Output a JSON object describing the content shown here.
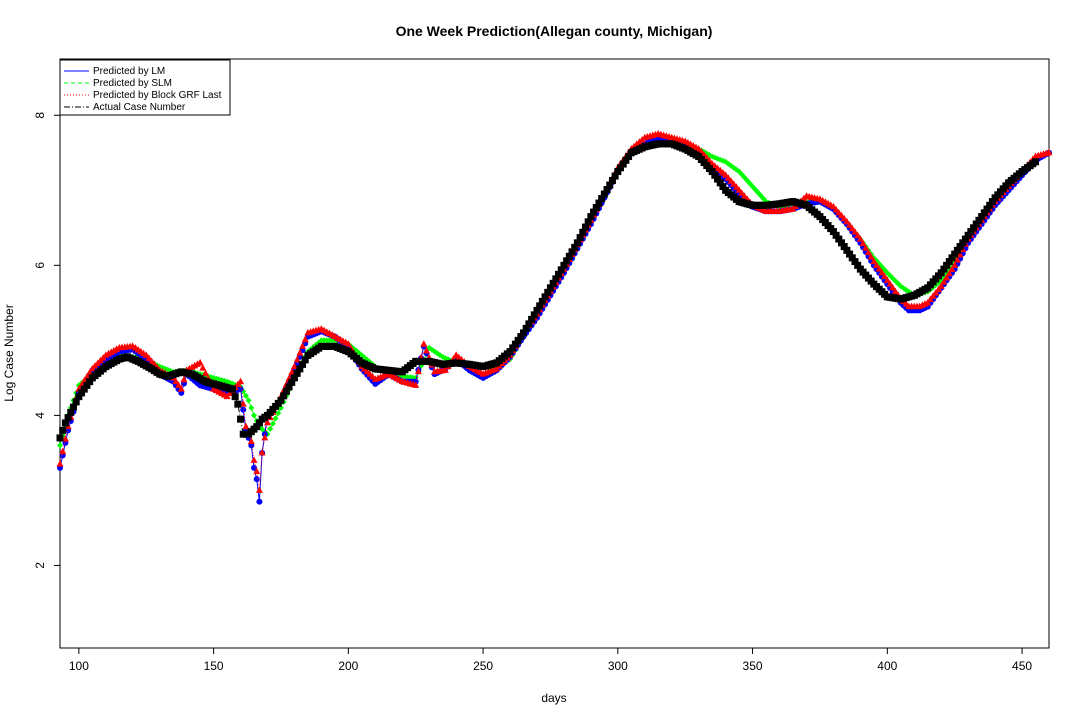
{
  "chart_data": {
    "type": "line",
    "title": "One Week Prediction(Allegan county, Michigan)",
    "xlabel": "days",
    "ylabel": "Log Case Number",
    "xlim": [
      93,
      460
    ],
    "ylim": [
      0.9,
      8.75
    ],
    "x_ticks": [
      100,
      150,
      200,
      250,
      300,
      350,
      400,
      450
    ],
    "y_ticks": [
      2,
      4,
      6,
      8
    ],
    "grid": false,
    "legend_position": "top-left",
    "series": [
      {
        "name": "Actual Case Number",
        "color": "#000000",
        "marker": "square",
        "line_style": "dash-dot",
        "x": [
          93,
          95,
          100,
          105,
          110,
          115,
          118,
          122,
          127,
          130,
          133,
          138,
          142,
          147,
          152,
          157,
          159,
          161,
          163,
          166,
          168,
          170,
          175,
          180,
          185,
          190,
          195,
          200,
          205,
          210,
          215,
          220,
          225,
          230,
          235,
          240,
          245,
          250,
          255,
          260,
          265,
          270,
          275,
          280,
          285,
          290,
          295,
          300,
          305,
          310,
          315,
          320,
          325,
          330,
          335,
          340,
          345,
          350,
          355,
          360,
          365,
          370,
          375,
          380,
          385,
          390,
          395,
          400,
          405,
          410,
          415,
          420,
          425,
          430,
          435,
          440,
          445,
          450,
          455
        ],
        "values": [
          3.7,
          3.9,
          4.25,
          4.5,
          4.65,
          4.75,
          4.78,
          4.72,
          4.62,
          4.55,
          4.52,
          4.58,
          4.55,
          4.45,
          4.4,
          4.35,
          4.15,
          3.75,
          3.75,
          3.85,
          3.95,
          4.0,
          4.2,
          4.5,
          4.8,
          4.92,
          4.92,
          4.85,
          4.7,
          4.62,
          4.6,
          4.58,
          4.72,
          4.72,
          4.68,
          4.7,
          4.68,
          4.65,
          4.7,
          4.85,
          5.1,
          5.4,
          5.7,
          6.0,
          6.3,
          6.65,
          6.95,
          7.25,
          7.5,
          7.58,
          7.62,
          7.62,
          7.55,
          7.45,
          7.25,
          7.0,
          6.85,
          6.8,
          6.8,
          6.82,
          6.85,
          6.8,
          6.65,
          6.45,
          6.2,
          5.95,
          5.75,
          5.58,
          5.55,
          5.6,
          5.7,
          5.9,
          6.15,
          6.4,
          6.65,
          6.9,
          7.1,
          7.25,
          7.38
        ]
      },
      {
        "name": "Predicted by SLM",
        "color": "#00ff00",
        "marker": "diamond",
        "line_style": "dashed",
        "x": [
          93,
          96,
          100,
          105,
          110,
          115,
          120,
          125,
          130,
          135,
          140,
          145,
          150,
          155,
          160,
          163,
          165,
          167,
          170,
          175,
          180,
          185,
          190,
          195,
          200,
          205,
          210,
          215,
          220,
          225,
          230,
          235,
          240,
          245,
          250,
          255,
          260,
          265,
          270,
          280,
          290,
          300,
          305,
          310,
          315,
          320,
          325,
          330,
          335,
          340,
          345,
          350,
          355,
          360,
          365,
          370,
          375,
          380,
          385,
          390,
          395,
          400,
          405,
          410,
          415,
          420,
          425,
          430,
          440,
          450,
          455,
          460
        ],
        "values": [
          3.6,
          4.0,
          4.4,
          4.55,
          4.7,
          4.8,
          4.78,
          4.75,
          4.65,
          4.58,
          4.6,
          4.55,
          4.5,
          4.45,
          4.38,
          4.2,
          4.0,
          3.85,
          3.75,
          4.1,
          4.5,
          4.85,
          5.0,
          5.0,
          4.95,
          4.8,
          4.65,
          4.55,
          4.52,
          4.5,
          4.9,
          4.78,
          4.7,
          4.68,
          4.65,
          4.62,
          4.75,
          5.05,
          5.35,
          5.95,
          6.6,
          7.25,
          7.5,
          7.6,
          7.68,
          7.68,
          7.62,
          7.55,
          7.45,
          7.38,
          7.25,
          7.05,
          6.85,
          6.78,
          6.82,
          6.85,
          6.85,
          6.75,
          6.55,
          6.35,
          6.1,
          5.9,
          5.72,
          5.6,
          5.65,
          5.8,
          6.05,
          6.35,
          6.85,
          7.25,
          7.4,
          7.5
        ]
      },
      {
        "name": "Predicted by LM",
        "color": "#0000ff",
        "marker": "circle",
        "line_style": "solid",
        "x": [
          93,
          96,
          100,
          105,
          110,
          115,
          120,
          125,
          130,
          135,
          138,
          140,
          145,
          150,
          155,
          160,
          162,
          164,
          165,
          166,
          167,
          168,
          170,
          175,
          180,
          185,
          190,
          195,
          200,
          205,
          210,
          215,
          220,
          225,
          228,
          232,
          236,
          240,
          245,
          250,
          255,
          260,
          265,
          270,
          280,
          290,
          300,
          305,
          310,
          315,
          320,
          325,
          330,
          335,
          340,
          345,
          350,
          355,
          360,
          365,
          370,
          375,
          380,
          385,
          390,
          395,
          400,
          405,
          408,
          412,
          415,
          420,
          425,
          430,
          440,
          450,
          455,
          460
        ],
        "values": [
          3.3,
          3.8,
          4.3,
          4.6,
          4.75,
          4.85,
          4.88,
          4.75,
          4.55,
          4.45,
          4.3,
          4.55,
          4.4,
          4.35,
          4.3,
          4.35,
          3.8,
          3.6,
          3.3,
          3.15,
          2.85,
          3.5,
          4.0,
          4.2,
          4.6,
          5.05,
          5.12,
          5.05,
          4.9,
          4.62,
          4.42,
          4.55,
          4.45,
          4.45,
          4.92,
          4.55,
          4.62,
          4.75,
          4.6,
          4.5,
          4.6,
          4.78,
          5.05,
          5.3,
          5.9,
          6.55,
          7.25,
          7.5,
          7.62,
          7.7,
          7.68,
          7.62,
          7.5,
          7.3,
          7.15,
          6.95,
          6.78,
          6.72,
          6.72,
          6.75,
          6.82,
          6.85,
          6.75,
          6.55,
          6.3,
          6.0,
          5.75,
          5.5,
          5.4,
          5.4,
          5.45,
          5.7,
          5.95,
          6.3,
          6.8,
          7.2,
          7.4,
          7.5
        ]
      },
      {
        "name": "Predicted by Block GRF Last",
        "color": "#ff0000",
        "marker": "triangle",
        "line_style": "dotted",
        "x": [
          93,
          96,
          100,
          105,
          110,
          115,
          120,
          125,
          130,
          135,
          138,
          140,
          145,
          150,
          155,
          160,
          162,
          164,
          165,
          166,
          167,
          168,
          170,
          175,
          180,
          185,
          190,
          195,
          200,
          205,
          210,
          215,
          220,
          225,
          228,
          232,
          236,
          240,
          245,
          250,
          255,
          260,
          265,
          270,
          280,
          290,
          300,
          305,
          310,
          315,
          320,
          325,
          330,
          335,
          340,
          345,
          350,
          355,
          360,
          365,
          370,
          375,
          380,
          385,
          390,
          395,
          400,
          405,
          408,
          412,
          415,
          420,
          425,
          430,
          440,
          450,
          455,
          460
        ],
        "values": [
          3.35,
          3.85,
          4.35,
          4.62,
          4.8,
          4.9,
          4.92,
          4.8,
          4.6,
          4.5,
          4.35,
          4.6,
          4.7,
          4.35,
          4.25,
          4.45,
          3.85,
          3.65,
          3.4,
          3.25,
          3.0,
          3.5,
          3.9,
          4.25,
          4.65,
          5.1,
          5.15,
          5.05,
          4.95,
          4.65,
          4.48,
          4.55,
          4.45,
          4.4,
          4.95,
          4.58,
          4.6,
          4.8,
          4.65,
          4.55,
          4.62,
          4.8,
          5.1,
          5.35,
          5.95,
          6.6,
          7.3,
          7.55,
          7.7,
          7.75,
          7.7,
          7.65,
          7.55,
          7.35,
          7.2,
          7.0,
          6.8,
          6.72,
          6.72,
          6.75,
          6.92,
          6.88,
          6.78,
          6.58,
          6.35,
          6.05,
          5.8,
          5.55,
          5.45,
          5.45,
          5.5,
          5.72,
          6.0,
          6.35,
          6.85,
          7.25,
          7.45,
          7.5
        ]
      }
    ]
  }
}
